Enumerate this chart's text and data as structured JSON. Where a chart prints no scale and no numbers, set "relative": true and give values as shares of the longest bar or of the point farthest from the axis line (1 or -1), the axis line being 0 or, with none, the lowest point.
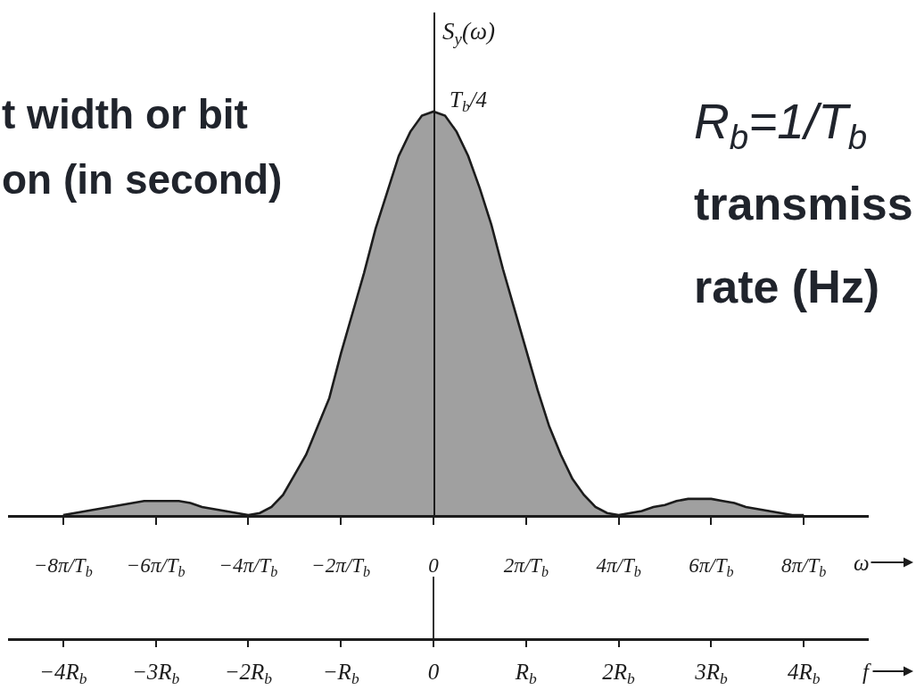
{
  "chart_data": {
    "type": "area",
    "relative": true,
    "x": [
      -8,
      -7.75,
      -7.5,
      -7.25,
      -7,
      -6.75,
      -6.5,
      -6.25,
      -6,
      -5.75,
      -5.5,
      -5.25,
      -5,
      -4.75,
      -4.5,
      -4.25,
      -4,
      -3.75,
      -3.5,
      -3.25,
      -3,
      -2.75,
      -2.5,
      -2.25,
      -2,
      -1.75,
      -1.5,
      -1.25,
      -1,
      -0.75,
      -0.5,
      -0.25,
      0,
      0.25,
      0.5,
      0.75,
      1,
      1.25,
      1.5,
      1.75,
      2,
      2.25,
      2.5,
      2.75,
      3,
      3.25,
      3.5,
      3.75,
      4,
      4.25,
      4.5,
      4.75,
      5,
      5.25,
      5.5,
      5.75,
      6,
      6.25,
      6.5,
      6.75,
      7,
      7.25,
      7.5,
      7.75,
      8
    ],
    "values": [
      0,
      0.005,
      0.01,
      0.015,
      0.02,
      0.025,
      0.03,
      0.035,
      0.035,
      0.035,
      0.035,
      0.03,
      0.02,
      0.015,
      0.01,
      0.005,
      0,
      0.005,
      0.02,
      0.05,
      0.1,
      0.15,
      0.22,
      0.29,
      0.4,
      0.5,
      0.6,
      0.71,
      0.8,
      0.89,
      0.95,
      0.99,
      1,
      0.99,
      0.95,
      0.89,
      0.81,
      0.72,
      0.61,
      0.51,
      0.41,
      0.31,
      0.22,
      0.15,
      0.09,
      0.05,
      0.02,
      0.005,
      0,
      0.005,
      0.01,
      0.02,
      0.025,
      0.035,
      0.04,
      0.04,
      0.04,
      0.035,
      0.03,
      0.02,
      0.015,
      0.01,
      0.005,
      0,
      0
    ],
    "color": "#1c1c1c",
    "xlim": [
      -9.2,
      9.4
    ],
    "xticks": [
      {
        "value": -8,
        "label": "−8π/T$_{b}$"
      },
      {
        "value": -6,
        "label": "−6π/T$_{b}$"
      },
      {
        "value": -4,
        "label": "−4π/T$_{b}$"
      },
      {
        "value": -2,
        "label": "−2π/T$_{b}$"
      },
      0,
      {
        "value": 2,
        "label": "2π/T$_{b}$"
      },
      {
        "value": 4,
        "label": "4π/T$_{b}$"
      },
      {
        "value": 6,
        "label": "6π/T$_{b}$"
      },
      {
        "value": 8,
        "label": "8π/T$_{b}$"
      }
    ],
    "x2lim": [
      -4.6,
      4.7
    ],
    "x2ticks": [
      {
        "value": -4,
        "label": "−4R$_{b}$"
      },
      {
        "value": -3,
        "label": "−3R$_{b}$"
      },
      {
        "value": -2,
        "label": "−2R$_{b}$"
      },
      {
        "value": -1,
        "label": "−R$_{b}$"
      },
      0,
      {
        "value": 1,
        "label": "R$_{b}$"
      },
      {
        "value": 2,
        "label": "2R$_{b}$"
      },
      {
        "value": 3,
        "label": "3R$_{b}$"
      },
      {
        "value": 4,
        "label": "4R$_{b}$"
      }
    ],
    "xlabel": "ω",
    "x2label": "f",
    "ylabel": "S$_{y}$(ω)",
    "annotations": [
      {
        "text": "T$_{b}$/4",
        "x": 0,
        "y": 1
      },
      "t width or bit",
      "on (in second)",
      "R$_{b}$=1/T$_{b}$",
      "transmiss",
      "rate (Hz)"
    ]
  }
}
